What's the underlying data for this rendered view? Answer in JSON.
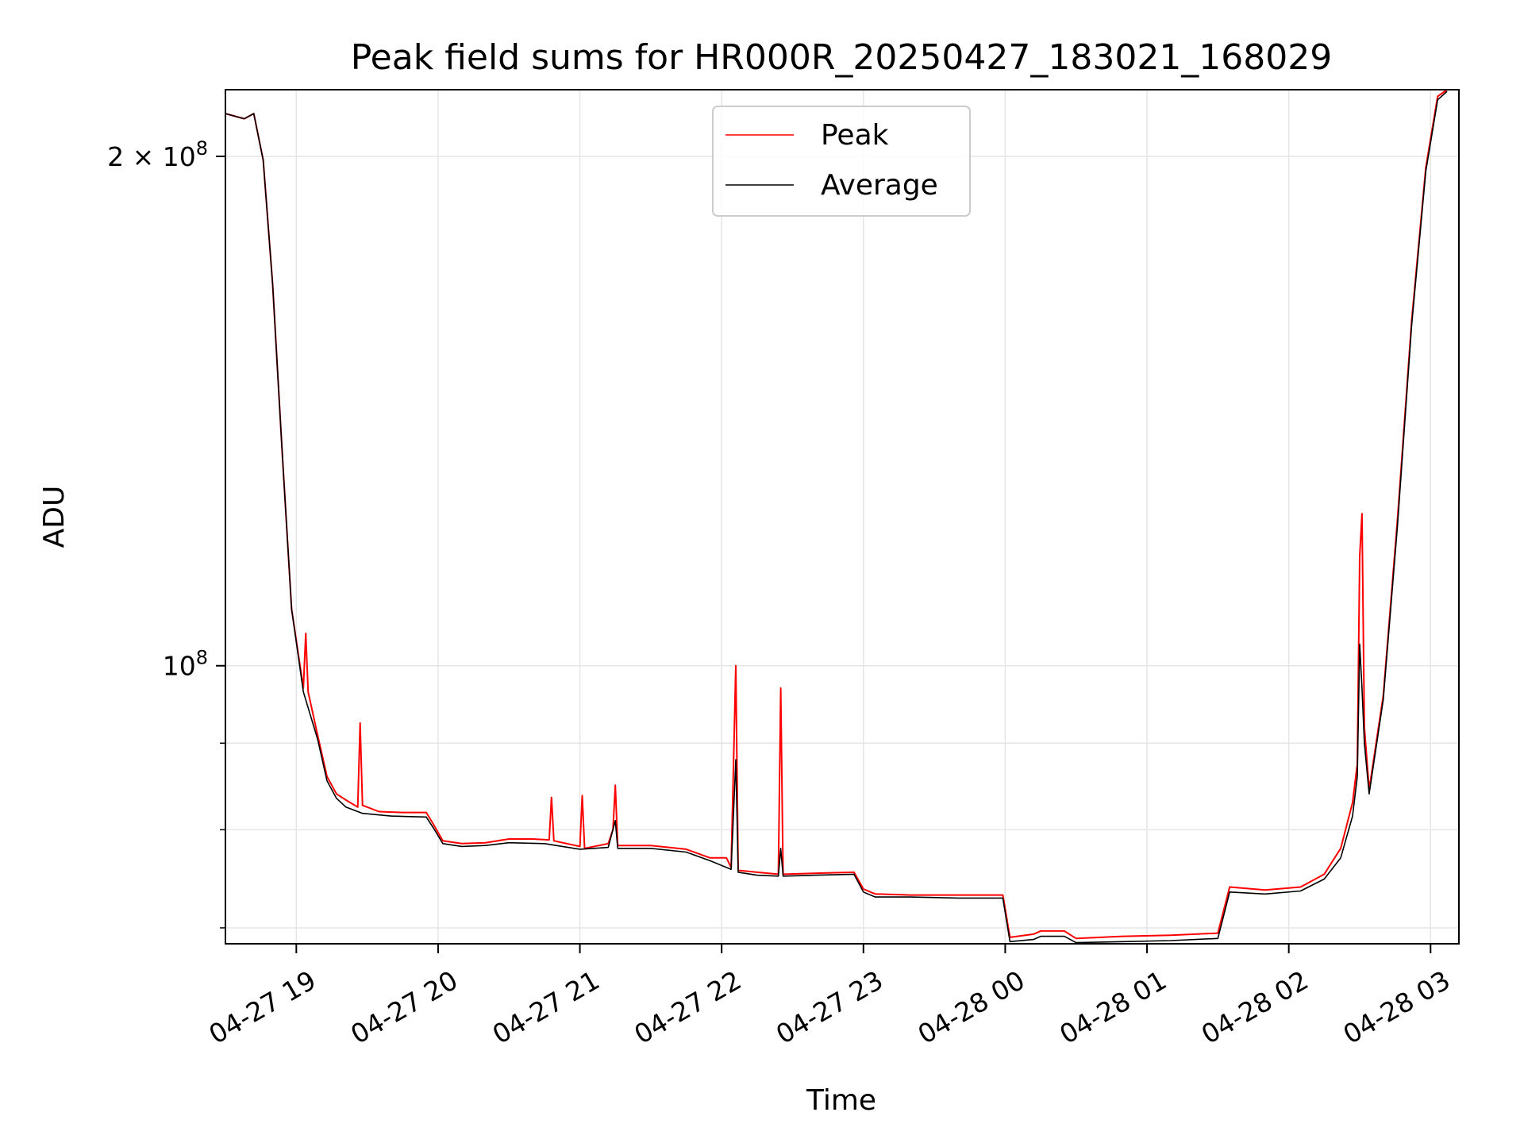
{
  "chart_data": {
    "type": "line",
    "title": "Peak field sums for HR000R_20250427_183021_168029",
    "xlabel": "Time",
    "ylabel": "ADU",
    "yscale": "log",
    "ylim": [
      68500000,
      219000000
    ],
    "xlim": [
      "2025-04-27 18:30",
      "2025-04-28 03:12"
    ],
    "grid": true,
    "legend_position": "top-center",
    "x_ticks": [
      {
        "label": "04-27 19",
        "time": "2025-04-27 19:00"
      },
      {
        "label": "04-27 20",
        "time": "2025-04-27 20:00"
      },
      {
        "label": "04-27 21",
        "time": "2025-04-27 21:00"
      },
      {
        "label": "04-27 22",
        "time": "2025-04-27 22:00"
      },
      {
        "label": "04-27 23",
        "time": "2025-04-27 23:00"
      },
      {
        "label": "04-28 00",
        "time": "2025-04-28 00:00"
      },
      {
        "label": "04-28 01",
        "time": "2025-04-28 01:00"
      },
      {
        "label": "04-28 02",
        "time": "2025-04-28 02:00"
      },
      {
        "label": "04-28 03",
        "time": "2025-04-28 03:00"
      }
    ],
    "y_major_ticks": [
      {
        "label_base": "10",
        "label_exp": "8",
        "value": 100000000
      },
      {
        "label_base": "2 × 10",
        "label_exp": "8",
        "value": 200000000
      }
    ],
    "y_minor_ticks": [
      70000000,
      80000000,
      90000000
    ],
    "series": [
      {
        "name": "Peak",
        "color": "#ff0000",
        "points": [
          [
            "2025-04-27 18:30",
            212000000
          ],
          [
            "2025-04-27 18:38",
            210500000
          ],
          [
            "2025-04-27 18:42",
            212000000
          ],
          [
            "2025-04-27 18:46",
            199000000
          ],
          [
            "2025-04-27 18:50",
            168000000
          ],
          [
            "2025-04-27 18:54",
            134000000
          ],
          [
            "2025-04-27 18:58",
            108000000
          ],
          [
            "2025-04-27 19:03",
            97000000
          ],
          [
            "2025-04-27 19:04",
            104500000
          ],
          [
            "2025-04-27 19:05",
            96500000
          ],
          [
            "2025-04-27 19:09",
            91000000
          ],
          [
            "2025-04-27 19:13",
            86000000
          ],
          [
            "2025-04-27 19:17",
            84000000
          ],
          [
            "2025-04-27 19:21",
            83300000
          ],
          [
            "2025-04-27 19:26",
            82500000
          ],
          [
            "2025-04-27 19:27",
            92500000
          ],
          [
            "2025-04-27 19:28",
            82700000
          ],
          [
            "2025-04-27 19:35",
            82000000
          ],
          [
            "2025-04-27 19:45",
            81900000
          ],
          [
            "2025-04-27 19:55",
            81900000
          ],
          [
            "2025-04-27 19:58",
            80600000
          ],
          [
            "2025-04-27 20:02",
            78800000
          ],
          [
            "2025-04-27 20:10",
            78500000
          ],
          [
            "2025-04-27 20:20",
            78600000
          ],
          [
            "2025-04-27 20:30",
            79000000
          ],
          [
            "2025-04-27 20:40",
            79000000
          ],
          [
            "2025-04-27 20:47",
            78900000
          ],
          [
            "2025-04-27 20:48",
            83600000
          ],
          [
            "2025-04-27 20:49",
            78800000
          ],
          [
            "2025-04-27 21:00",
            78200000
          ],
          [
            "2025-04-27 21:01",
            83800000
          ],
          [
            "2025-04-27 21:02",
            78000000
          ],
          [
            "2025-04-27 21:12",
            78500000
          ],
          [
            "2025-04-27 21:14",
            80000000
          ],
          [
            "2025-04-27 21:15",
            85000000
          ],
          [
            "2025-04-27 21:16",
            78300000
          ],
          [
            "2025-04-27 21:30",
            78300000
          ],
          [
            "2025-04-27 21:45",
            77900000
          ],
          [
            "2025-04-27 21:55",
            77000000
          ],
          [
            "2025-04-27 22:02",
            77000000
          ],
          [
            "2025-04-27 22:04",
            76000000
          ],
          [
            "2025-04-27 22:06",
            100000000
          ],
          [
            "2025-04-27 22:07",
            75700000
          ],
          [
            "2025-04-27 22:15",
            75500000
          ],
          [
            "2025-04-27 22:24",
            75300000
          ],
          [
            "2025-04-27 22:25",
            97000000
          ],
          [
            "2025-04-27 22:26",
            75300000
          ],
          [
            "2025-04-27 22:40",
            75400000
          ],
          [
            "2025-04-27 22:56",
            75500000
          ],
          [
            "2025-04-27 23:00",
            73800000
          ],
          [
            "2025-04-27 23:05",
            73300000
          ],
          [
            "2025-04-27 23:20",
            73200000
          ],
          [
            "2025-04-27 23:40",
            73200000
          ],
          [
            "2025-04-27 23:59",
            73200000
          ],
          [
            "2025-04-28 00:02",
            69100000
          ],
          [
            "2025-04-28 00:12",
            69400000
          ],
          [
            "2025-04-28 00:15",
            69700000
          ],
          [
            "2025-04-28 00:25",
            69700000
          ],
          [
            "2025-04-28 00:30",
            69000000
          ],
          [
            "2025-04-28 00:50",
            69200000
          ],
          [
            "2025-04-28 01:10",
            69300000
          ],
          [
            "2025-04-28 01:30",
            69500000
          ],
          [
            "2025-04-28 01:35",
            74000000
          ],
          [
            "2025-04-28 01:50",
            73700000
          ],
          [
            "2025-04-28 02:05",
            74000000
          ],
          [
            "2025-04-28 02:15",
            75300000
          ],
          [
            "2025-04-28 02:22",
            78000000
          ],
          [
            "2025-04-28 02:27",
            83000000
          ],
          [
            "2025-04-28 02:29",
            87500000
          ],
          [
            "2025-04-28 02:30",
            116000000
          ],
          [
            "2025-04-28 02:31",
            123000000
          ],
          [
            "2025-04-28 02:32",
            92000000
          ],
          [
            "2025-04-28 02:34",
            84500000
          ],
          [
            "2025-04-28 02:40",
            96000000
          ],
          [
            "2025-04-28 02:46",
            122000000
          ],
          [
            "2025-04-28 02:52",
            160000000
          ],
          [
            "2025-04-28 02:58",
            197000000
          ],
          [
            "2025-04-28 03:03",
            217000000
          ],
          [
            "2025-04-28 03:07",
            219000000
          ]
        ]
      },
      {
        "name": "Average",
        "color": "#000000",
        "points": [
          [
            "2025-04-27 18:30",
            212000000
          ],
          [
            "2025-04-27 18:38",
            210500000
          ],
          [
            "2025-04-27 18:42",
            212000000
          ],
          [
            "2025-04-27 18:46",
            199000000
          ],
          [
            "2025-04-27 18:50",
            168000000
          ],
          [
            "2025-04-27 18:54",
            134000000
          ],
          [
            "2025-04-27 18:58",
            108000000
          ],
          [
            "2025-04-27 19:03",
            96500000
          ],
          [
            "2025-04-27 19:09",
            90500000
          ],
          [
            "2025-04-27 19:13",
            85500000
          ],
          [
            "2025-04-27 19:17",
            83500000
          ],
          [
            "2025-04-27 19:21",
            82500000
          ],
          [
            "2025-04-27 19:28",
            81800000
          ],
          [
            "2025-04-27 19:40",
            81500000
          ],
          [
            "2025-04-27 19:55",
            81400000
          ],
          [
            "2025-04-27 19:58",
            80200000
          ],
          [
            "2025-04-27 20:02",
            78500000
          ],
          [
            "2025-04-27 20:10",
            78200000
          ],
          [
            "2025-04-27 20:20",
            78300000
          ],
          [
            "2025-04-27 20:30",
            78600000
          ],
          [
            "2025-04-27 20:45",
            78500000
          ],
          [
            "2025-04-27 21:00",
            77900000
          ],
          [
            "2025-04-27 21:12",
            78100000
          ],
          [
            "2025-04-27 21:15",
            81000000
          ],
          [
            "2025-04-27 21:16",
            78000000
          ],
          [
            "2025-04-27 21:30",
            78000000
          ],
          [
            "2025-04-27 21:45",
            77600000
          ],
          [
            "2025-04-27 21:55",
            76700000
          ],
          [
            "2025-04-27 22:04",
            75800000
          ],
          [
            "2025-04-27 22:06",
            88000000
          ],
          [
            "2025-04-27 22:07",
            75500000
          ],
          [
            "2025-04-27 22:15",
            75200000
          ],
          [
            "2025-04-27 22:24",
            75100000
          ],
          [
            "2025-04-27 22:25",
            78000000
          ],
          [
            "2025-04-27 22:26",
            75100000
          ],
          [
            "2025-04-27 22:40",
            75200000
          ],
          [
            "2025-04-27 22:56",
            75300000
          ],
          [
            "2025-04-27 23:00",
            73500000
          ],
          [
            "2025-04-27 23:05",
            73000000
          ],
          [
            "2025-04-27 23:20",
            73000000
          ],
          [
            "2025-04-27 23:40",
            72900000
          ],
          [
            "2025-04-27 23:59",
            72900000
          ],
          [
            "2025-04-28 00:02",
            68700000
          ],
          [
            "2025-04-28 00:12",
            68900000
          ],
          [
            "2025-04-28 00:15",
            69200000
          ],
          [
            "2025-04-28 00:25",
            69200000
          ],
          [
            "2025-04-28 00:30",
            68600000
          ],
          [
            "2025-04-28 00:50",
            68700000
          ],
          [
            "2025-04-28 01:10",
            68800000
          ],
          [
            "2025-04-28 01:30",
            69000000
          ],
          [
            "2025-04-28 01:35",
            73500000
          ],
          [
            "2025-04-28 01:50",
            73300000
          ],
          [
            "2025-04-28 02:05",
            73600000
          ],
          [
            "2025-04-28 02:15",
            74800000
          ],
          [
            "2025-04-28 02:22",
            77000000
          ],
          [
            "2025-04-28 02:27",
            81500000
          ],
          [
            "2025-04-28 02:29",
            86000000
          ],
          [
            "2025-04-28 02:30",
            103000000
          ],
          [
            "2025-04-28 02:31",
            97000000
          ],
          [
            "2025-04-28 02:32",
            90000000
          ],
          [
            "2025-04-28 02:34",
            84000000
          ],
          [
            "2025-04-28 02:40",
            95500000
          ],
          [
            "2025-04-28 02:46",
            121000000
          ],
          [
            "2025-04-28 02:52",
            159000000
          ],
          [
            "2025-04-28 02:58",
            196000000
          ],
          [
            "2025-04-28 03:03",
            216000000
          ],
          [
            "2025-04-28 03:07",
            218500000
          ]
        ]
      }
    ]
  }
}
